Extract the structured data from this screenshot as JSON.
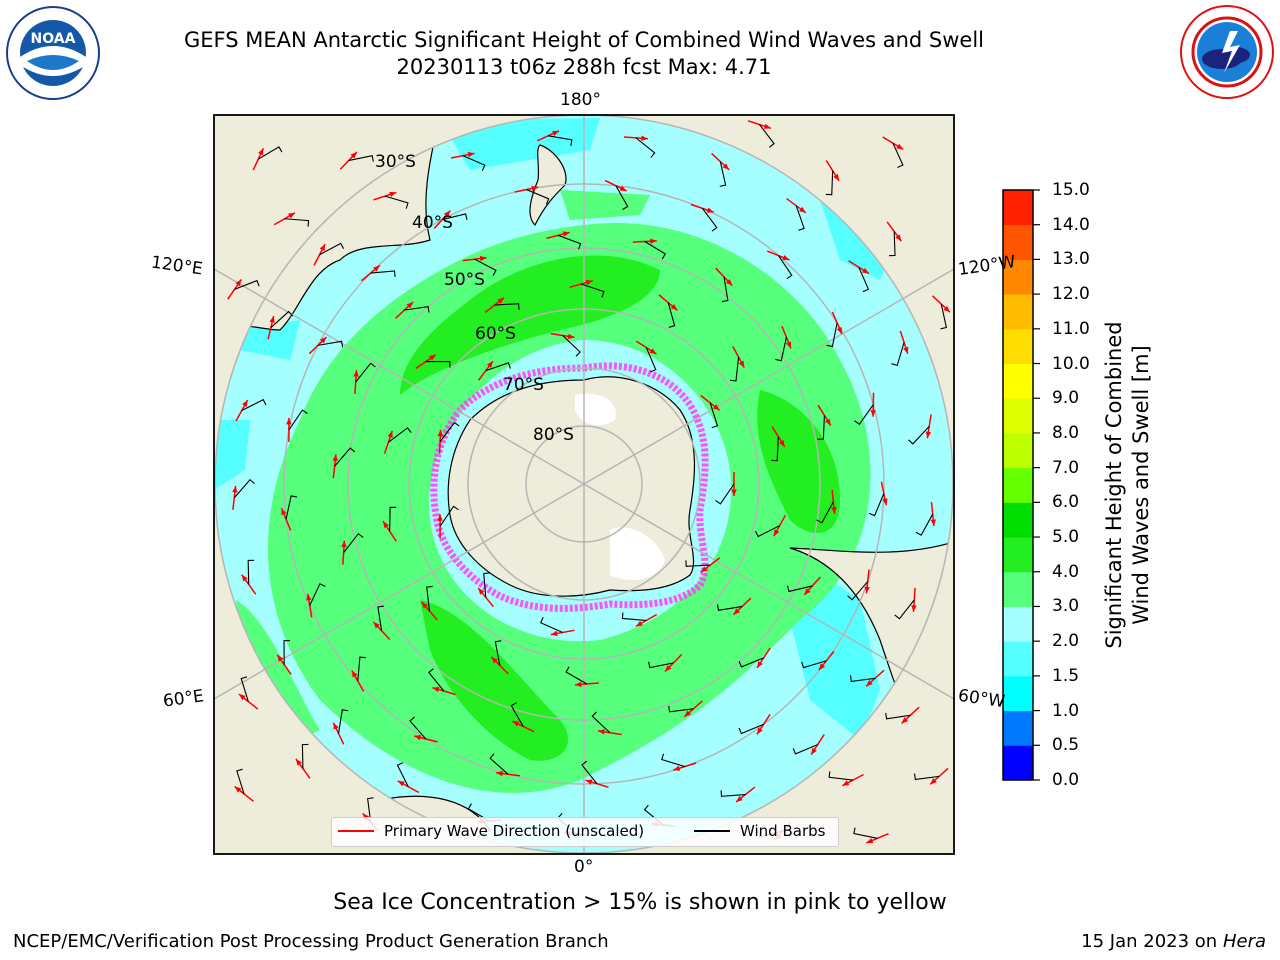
{
  "header": {
    "title_line1": "GEFS MEAN Antarctic Significant Height of Combined Wind Waves and Swell",
    "title_line2": "20230113 t06z 288h fcst   Max: 4.71"
  },
  "logos": {
    "left": {
      "name": "noaa-logo",
      "text": "NOAA",
      "ring_text": "NATIONAL OCEANIC AND ATMOSPHERIC ADMINISTRATION · U.S. DEPARTMENT OF COMMERCE"
    },
    "right": {
      "name": "nws-logo",
      "ring_text": "NATIONAL WEATHER SERVICE"
    }
  },
  "map": {
    "projection": "south-polar-stereographic",
    "longitude_labels": {
      "top": "180°",
      "bottom": "0°",
      "upper_left": "120°E",
      "upper_right": "120°W",
      "lower_left": "60°E",
      "lower_right": "60°W"
    },
    "latitude_labels": [
      "30°S",
      "40°S",
      "50°S",
      "60°S",
      "70°S",
      "80°S"
    ],
    "colors": {
      "land": "#eeecdb",
      "ocean_low": "#a6ffff",
      "ocean_mid": "#55ffff",
      "ocean_high": "#56ff7c",
      "ocean_peak": "#22ee22",
      "sea_ice": "#ff44ff",
      "grid": "#b5b5b5"
    }
  },
  "legend": {
    "items": [
      {
        "label": "Primary Wave Direction (unscaled)",
        "color": "#ff0000"
      },
      {
        "label": "Wind Barbs",
        "color": "#000000"
      }
    ]
  },
  "colorbar": {
    "label_line1": "Significant Height of Combined",
    "label_line2": "Wind Waves and Swell [m]",
    "ticks": [
      "0.0",
      "0.5",
      "1.0",
      "1.5",
      "2.0",
      "3.0",
      "4.0",
      "5.0",
      "6.0",
      "7.0",
      "8.0",
      "9.0",
      "10.0",
      "11.0",
      "12.0",
      "13.0",
      "14.0",
      "15.0"
    ],
    "colors": [
      "#0000ff",
      "#0077ff",
      "#00ffff",
      "#55ffff",
      "#a6ffff",
      "#56ff7c",
      "#22ee22",
      "#00dd00",
      "#66ff00",
      "#bbff00",
      "#ddff00",
      "#ffff00",
      "#ffdd00",
      "#ffbb00",
      "#ff8800",
      "#ff5500",
      "#ff2200"
    ]
  },
  "footer": {
    "footnote": "Sea Ice Concentration > 15% is shown in pink to yellow",
    "credit": "NCEP/EMC/Verification Post Processing Product Generation Branch",
    "date": "15 Jan 2023 on",
    "machine": "Hera"
  }
}
